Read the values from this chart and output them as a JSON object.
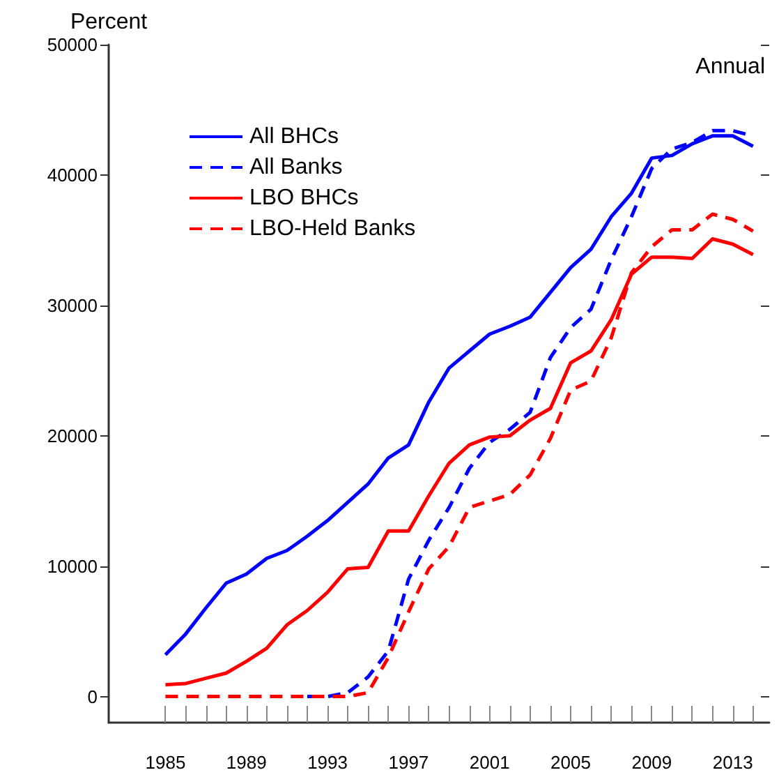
{
  "chart_data": {
    "type": "line",
    "ylabel": "Percent",
    "annotations": [
      "Annual"
    ],
    "x": [
      1985,
      1986,
      1987,
      1988,
      1989,
      1990,
      1991,
      1992,
      1993,
      1994,
      1995,
      1996,
      1997,
      1998,
      1999,
      2000,
      2001,
      2002,
      2003,
      2004,
      2005,
      2006,
      2007,
      2008,
      2009,
      2010,
      2011,
      2012,
      2013,
      2014
    ],
    "series": [
      {
        "name": "All BHCs",
        "color": "#0000ff",
        "line_style": "solid",
        "values": [
          3200,
          4800,
          6800,
          8700,
          9400,
          10600,
          11200,
          12300,
          13500,
          14900,
          16300,
          18300,
          19300,
          22600,
          25200,
          26500,
          27800,
          28400,
          29100,
          31000,
          32900,
          34300,
          36800,
          38600,
          41300,
          41500,
          42400,
          43000,
          43000,
          42200
        ]
      },
      {
        "name": "All Banks",
        "color": "#0000ff",
        "line_style": "dashed",
        "values": [
          null,
          null,
          null,
          null,
          null,
          null,
          null,
          0,
          0,
          300,
          1500,
          3500,
          9000,
          12000,
          14500,
          17500,
          19500,
          20500,
          21800,
          26000,
          28300,
          29700,
          33500,
          36800,
          40500,
          42000,
          42500,
          43400,
          43400,
          43000
        ]
      },
      {
        "name": "LBO BHCs",
        "color": "#ff0000",
        "line_style": "solid",
        "values": [
          900,
          1000,
          1400,
          1800,
          2700,
          3700,
          5500,
          6600,
          8000,
          9800,
          9900,
          12700,
          12700,
          15400,
          17900,
          19300,
          19900,
          20000,
          21200,
          22100,
          25600,
          26500,
          28900,
          32400,
          33700,
          33700,
          33600,
          35100,
          34700,
          33900
        ]
      },
      {
        "name": "LBO-Held Banks",
        "color": "#ff0000",
        "line_style": "dashed",
        "values": [
          0,
          0,
          0,
          0,
          0,
          0,
          0,
          0,
          0,
          0,
          300,
          3000,
          6500,
          9800,
          11500,
          14500,
          15000,
          15500,
          17000,
          19800,
          23500,
          24200,
          27500,
          32500,
          34500,
          35800,
          35800,
          37000,
          36600,
          35700
        ]
      }
    ],
    "xlim": [
      1982.2,
      2014.8
    ],
    "xticks": [
      1985,
      {
        "value": 1986,
        "label": null
      },
      {
        "value": 1987,
        "label": null
      },
      {
        "value": 1988,
        "label": null
      },
      1989,
      {
        "value": 1990,
        "label": null
      },
      {
        "value": 1991,
        "label": null
      },
      {
        "value": 1992,
        "label": null
      },
      1993,
      {
        "value": 1994,
        "label": null
      },
      {
        "value": 1995,
        "label": null
      },
      {
        "value": 1996,
        "label": null
      },
      1997,
      {
        "value": 1998,
        "label": null
      },
      {
        "value": 1999,
        "label": null
      },
      {
        "value": 2000,
        "label": null
      },
      2001,
      {
        "value": 2002,
        "label": null
      },
      {
        "value": 2003,
        "label": null
      },
      {
        "value": 2004,
        "label": null
      },
      2005,
      {
        "value": 2006,
        "label": null
      },
      {
        "value": 2007,
        "label": null
      },
      {
        "value": 2008,
        "label": null
      },
      2009,
      {
        "value": 2010,
        "label": null
      },
      {
        "value": 2011,
        "label": null
      },
      {
        "value": 2012,
        "label": null
      },
      2013,
      {
        "value": 2014,
        "label": null
      }
    ],
    "ylim": [
      -2000,
      50000
    ],
    "yticks": [
      0,
      10000,
      20000,
      30000,
      40000,
      50000
    ],
    "grid": false,
    "legend": "top left",
    "marker": "none"
  }
}
